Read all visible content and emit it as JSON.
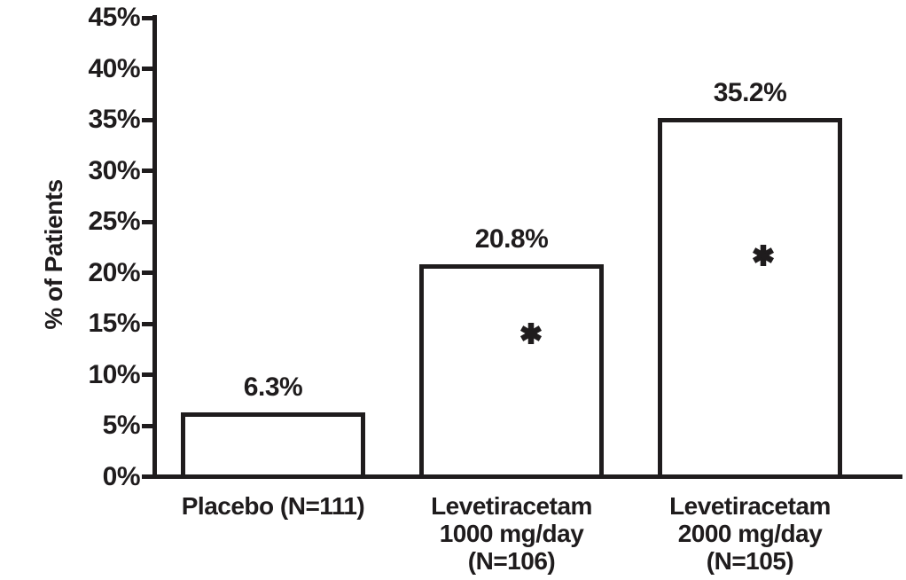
{
  "chart_data": {
    "type": "bar",
    "title": "",
    "ylabel": "% of Patients",
    "xlabel": "",
    "ylim": [
      0,
      45
    ],
    "ytick_step": 5,
    "ytick_values": [
      0,
      5,
      10,
      15,
      20,
      25,
      30,
      35,
      40,
      45
    ],
    "ytick_labels": [
      "0%",
      "5%",
      "10%",
      "15%",
      "20%",
      "25%",
      "30%",
      "35%",
      "40%",
      "45%"
    ],
    "categories": [
      "Placebo (N=111)",
      "Levetiracetam 1000 mg/day (N=106)",
      "Levetiracetam 2000 mg/day (N=105)"
    ],
    "category_lines": [
      [
        "Placebo (N=111)"
      ],
      [
        "Levetiracetam",
        "1000 mg/day",
        "(N=106)"
      ],
      [
        "Levetiracetam",
        "2000 mg/day",
        "(N=105)"
      ]
    ],
    "values": [
      6.3,
      20.8,
      35.2
    ],
    "value_labels": [
      "6.3%",
      "20.8%",
      "35.2%"
    ],
    "significance": [
      false,
      true,
      true
    ],
    "significance_symbol": "*",
    "grid": false,
    "legend": "none",
    "bar_fill_color": "#ffffff",
    "line_color": "#1f1c1d",
    "background_color": "#ffffff"
  }
}
